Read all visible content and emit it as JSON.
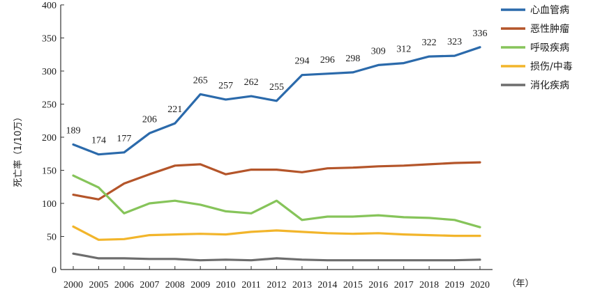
{
  "chart_data": {
    "type": "line",
    "title": "",
    "xlabel": "（年）",
    "ylabel": "死亡率（1/10万）",
    "ylim": [
      0,
      400
    ],
    "yticks": [
      0,
      50,
      100,
      150,
      200,
      250,
      300,
      350,
      400
    ],
    "grid": false,
    "legend_position": "top-right",
    "categories": [
      "2000",
      "2005",
      "2006",
      "2007",
      "2008",
      "2009",
      "2010",
      "2011",
      "2012",
      "2013",
      "2014",
      "2015",
      "2016",
      "2017",
      "2018",
      "2019",
      "2020"
    ],
    "series": [
      {
        "name": "心血管病",
        "color": "#2b6aab",
        "values": [
          189,
          174,
          177,
          206,
          221,
          265,
          257,
          262,
          255,
          294,
          296,
          298,
          309,
          312,
          322,
          323,
          336
        ],
        "labels": [
          "189",
          "174",
          "177",
          "206",
          "221",
          "265",
          "257",
          "262",
          "255",
          "294",
          "296",
          "298",
          "309",
          "312",
          "322",
          "323",
          "336"
        ]
      },
      {
        "name": "恶性肿瘤",
        "color": "#b4552a",
        "values": [
          113,
          106,
          130,
          144,
          157,
          159,
          144,
          151,
          151,
          147,
          153,
          154,
          156,
          157,
          159,
          161,
          162
        ]
      },
      {
        "name": "呼吸疾病",
        "color": "#86c45a",
        "values": [
          142,
          124,
          85,
          100,
          104,
          98,
          88,
          85,
          104,
          75,
          80,
          80,
          82,
          79,
          78,
          75,
          64
        ]
      },
      {
        "name": "损伤/中毒",
        "color": "#f2b52b",
        "values": [
          65,
          45,
          46,
          52,
          53,
          54,
          53,
          57,
          59,
          57,
          55,
          54,
          55,
          53,
          52,
          51,
          51
        ]
      },
      {
        "name": "消化疾病",
        "color": "#6d6d6d",
        "values": [
          24,
          17,
          17,
          16,
          16,
          14,
          15,
          14,
          17,
          15,
          14,
          14,
          14,
          14,
          14,
          14,
          15
        ]
      }
    ]
  }
}
